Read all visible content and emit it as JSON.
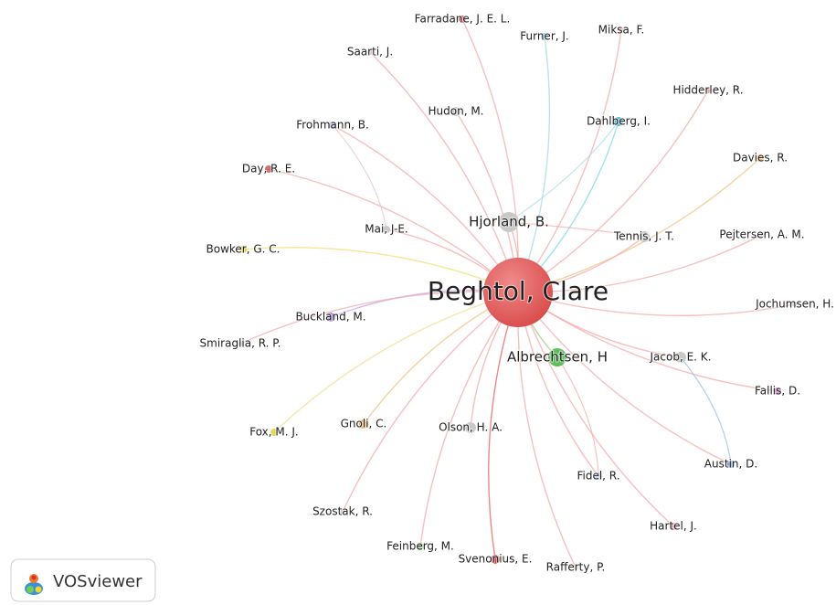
{
  "nodes": [
    {
      "label": "Beghtol, Clare"
    },
    {
      "label": "Hjorland, B."
    },
    {
      "label": "Albrechtsen, H"
    },
    {
      "label": "Farradane, J. E. L."
    },
    {
      "label": "Furner, J."
    },
    {
      "label": "Miksa, F."
    },
    {
      "label": "Saarti, J."
    },
    {
      "label": "Hidderley, R."
    },
    {
      "label": "Hudon, M."
    },
    {
      "label": "Frohmann, B."
    },
    {
      "label": "Dahlberg, I."
    },
    {
      "label": "Davies, R."
    },
    {
      "label": "Day, R. E."
    },
    {
      "label": "Mai, J-E."
    },
    {
      "label": "Tennis, J. T."
    },
    {
      "label": "Pejtersen, A. M."
    },
    {
      "label": "Bowker, G. C."
    },
    {
      "label": "Jochumsen, H."
    },
    {
      "label": "Buckland, M."
    },
    {
      "label": "Smiraglia, R. P."
    },
    {
      "label": "Jacob, E. K."
    },
    {
      "label": "Fallis, D."
    },
    {
      "label": "Gnoli, C."
    },
    {
      "label": "Fox, M. J."
    },
    {
      "label": "Olson, H. A."
    },
    {
      "label": "Austin, D."
    },
    {
      "label": "Fidel, R."
    },
    {
      "label": "Szostak, R."
    },
    {
      "label": "Hartel, J."
    },
    {
      "label": "Feinberg, M."
    },
    {
      "label": "Svenonius, E."
    },
    {
      "label": "Rafferty, P."
    }
  ],
  "logo": {
    "text": "VOSviewer"
  }
}
